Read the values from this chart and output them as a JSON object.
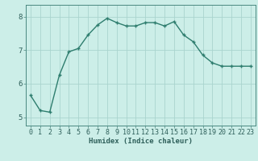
{
  "x": [
    0,
    1,
    2,
    3,
    4,
    5,
    6,
    7,
    8,
    9,
    10,
    11,
    12,
    13,
    14,
    15,
    16,
    17,
    18,
    19,
    20,
    21,
    22,
    23
  ],
  "y": [
    5.65,
    5.2,
    5.15,
    6.25,
    6.95,
    7.05,
    7.45,
    7.75,
    7.95,
    7.82,
    7.72,
    7.72,
    7.82,
    7.82,
    7.72,
    7.85,
    7.45,
    7.25,
    6.85,
    6.62,
    6.52,
    6.52,
    6.52,
    6.52
  ],
  "line_color": "#2e7d6e",
  "marker": "+",
  "marker_size": 3,
  "marker_edge_width": 1.0,
  "bg_color": "#cceee8",
  "grid_color": "#aad4ce",
  "xlabel": "Humidex (Indice chaleur)",
  "ylim": [
    4.75,
    8.35
  ],
  "xlim": [
    -0.5,
    23.5
  ],
  "yticks": [
    5,
    6,
    7,
    8
  ],
  "xticks": [
    0,
    1,
    2,
    3,
    4,
    5,
    6,
    7,
    8,
    9,
    10,
    11,
    12,
    13,
    14,
    15,
    16,
    17,
    18,
    19,
    20,
    21,
    22,
    23
  ],
  "xlabel_fontsize": 6.5,
  "tick_fontsize": 6.0,
  "line_width": 1.0,
  "spine_color": "#4a8880"
}
